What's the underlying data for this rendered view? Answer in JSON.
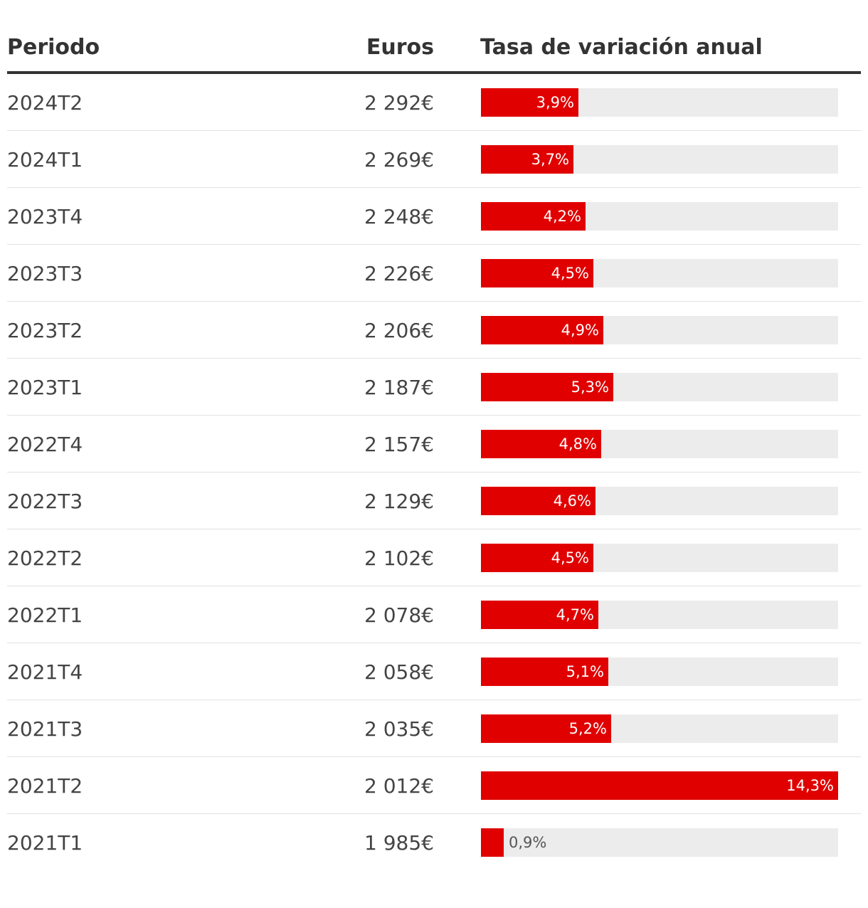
{
  "columns": {
    "period": "Periodo",
    "euros": "Euros",
    "rate": "Tasa de variación anual"
  },
  "colors": {
    "bar": "#e00000",
    "track": "#ececec",
    "text": "#333333"
  },
  "chart_data": {
    "type": "bar",
    "orientation": "horizontal",
    "title": "",
    "xlabel": "Tasa de variación anual",
    "ylabel": "Periodo",
    "xlim": [
      0,
      14.3
    ],
    "categories": [
      "2024T2",
      "2024T1",
      "2023T4",
      "2023T3",
      "2023T2",
      "2023T1",
      "2022T4",
      "2022T3",
      "2022T2",
      "2022T1",
      "2021T4",
      "2021T3",
      "2021T2",
      "2021T1"
    ],
    "values": [
      3.9,
      3.7,
      4.2,
      4.5,
      4.9,
      5.3,
      4.8,
      4.6,
      4.5,
      4.7,
      5.1,
      5.2,
      14.3,
      0.9
    ],
    "rows": [
      {
        "period": "2024T2",
        "euros": "2 292€",
        "rate": 3.9,
        "rate_label": "3,9%"
      },
      {
        "period": "2024T1",
        "euros": "2 269€",
        "rate": 3.7,
        "rate_label": "3,7%"
      },
      {
        "period": "2023T4",
        "euros": "2 248€",
        "rate": 4.2,
        "rate_label": "4,2%"
      },
      {
        "period": "2023T3",
        "euros": "2 226€",
        "rate": 4.5,
        "rate_label": "4,5%"
      },
      {
        "period": "2023T2",
        "euros": "2 206€",
        "rate": 4.9,
        "rate_label": "4,9%"
      },
      {
        "period": "2023T1",
        "euros": "2 187€",
        "rate": 5.3,
        "rate_label": "5,3%"
      },
      {
        "period": "2022T4",
        "euros": "2 157€",
        "rate": 4.8,
        "rate_label": "4,8%"
      },
      {
        "period": "2022T3",
        "euros": "2 129€",
        "rate": 4.6,
        "rate_label": "4,6%"
      },
      {
        "period": "2022T2",
        "euros": "2 102€",
        "rate": 4.5,
        "rate_label": "4,5%"
      },
      {
        "period": "2022T1",
        "euros": "2 078€",
        "rate": 4.7,
        "rate_label": "4,7%"
      },
      {
        "period": "2021T4",
        "euros": "2 058€",
        "rate": 5.1,
        "rate_label": "5,1%"
      },
      {
        "period": "2021T3",
        "euros": "2 035€",
        "rate": 5.2,
        "rate_label": "5,2%"
      },
      {
        "period": "2021T2",
        "euros": "2 012€",
        "rate": 14.3,
        "rate_label": "14,3%"
      },
      {
        "period": "2021T1",
        "euros": "1 985€",
        "rate": 0.9,
        "rate_label": "0,9%"
      }
    ]
  }
}
